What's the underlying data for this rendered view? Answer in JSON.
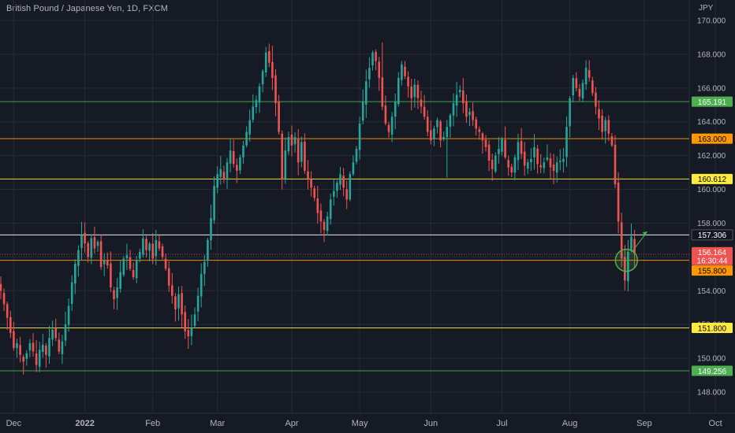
{
  "chart_title": "British Pound / Japanese Yen, 1D, FXCM",
  "price_unit": "JPY",
  "colors": {
    "background": "#161a25",
    "up": "#26a69a",
    "down": "#ef5350",
    "grid": "#252a36",
    "axis_text": "#b2b5be"
  },
  "chart_data": {
    "type": "candlestick",
    "title": "British Pound / Japanese Yen, 1D, FXCM",
    "ylabel": "JPY",
    "ylim": [
      147.0,
      171.0
    ],
    "y_ticks": [
      "148.000",
      "150.000",
      "152.000",
      "154.000",
      "156.000",
      "158.000",
      "160.000",
      "162.000",
      "164.000",
      "166.000",
      "168.000",
      "170.000"
    ],
    "x_ticks": [
      {
        "label": "Dec",
        "bar": 4
      },
      {
        "label": "2022",
        "bar": 26
      },
      {
        "label": "Feb",
        "bar": 47
      },
      {
        "label": "Mar",
        "bar": 67
      },
      {
        "label": "Apr",
        "bar": 90
      },
      {
        "label": "May",
        "bar": 111
      },
      {
        "label": "Jun",
        "bar": 133
      },
      {
        "label": "Jul",
        "bar": 155
      },
      {
        "label": "Aug",
        "bar": 176
      },
      {
        "label": "Sep",
        "bar": 199
      },
      {
        "label": "Oct",
        "bar": 221
      }
    ],
    "horizontal_levels": [
      {
        "value": 165.191,
        "label": "165.191",
        "color": "#4caf50",
        "label_bg": "#4caf50",
        "label_fg": "#ffffff"
      },
      {
        "value": 163.0,
        "label": "163.000",
        "color": "#ff9800",
        "label_bg": "#ff9800",
        "label_fg": "#000000"
      },
      {
        "value": 160.612,
        "label": "160.612",
        "color": "#ffeb3b",
        "label_bg": "#ffeb3b",
        "label_fg": "#000000"
      },
      {
        "value": 157.306,
        "label": "157.306",
        "color": "#ffffff",
        "label_bg": "#131722",
        "label_fg": "#ffffff"
      },
      {
        "value": 155.8,
        "label": "155.800",
        "color": "#ff9800",
        "label_bg": "#ff9800",
        "label_fg": "#000000"
      },
      {
        "value": 151.8,
        "label": "151.800",
        "color": "#ffeb3b",
        "label_bg": "#ffeb3b",
        "label_fg": "#000000"
      },
      {
        "value": 149.256,
        "label": "149.256",
        "color": "#4caf50",
        "label_bg": "#4caf50",
        "label_fg": "#ffffff"
      }
    ],
    "last_price": {
      "value": 156.164,
      "label": "156.164",
      "countdown": "16:30:44"
    },
    "series_close": [
      154.0,
      153.2,
      152.4,
      151.5,
      150.6,
      150.9,
      150.2,
      149.8,
      150.3,
      150.9,
      150.4,
      149.6,
      150.5,
      150.8,
      150.2,
      151.2,
      151.7,
      151.2,
      150.4,
      151.0,
      152.0,
      153.1,
      154.5,
      155.6,
      156.4,
      157.3,
      156.8,
      156.0,
      157.1,
      156.5,
      156.9,
      155.4,
      155.8,
      155.5,
      154.2,
      153.5,
      154.2,
      155.1,
      155.9,
      156.1,
      155.3,
      154.8,
      155.8,
      156.3,
      157.1,
      156.4,
      156.8,
      155.9,
      157.0,
      156.5,
      156.0,
      155.3,
      154.3,
      153.7,
      152.9,
      153.8,
      152.6,
      151.6,
      151.3,
      151.8,
      152.6,
      153.7,
      155.0,
      155.7,
      157.0,
      158.3,
      160.2,
      160.9,
      161.2,
      160.6,
      161.6,
      162.3,
      161.5,
      161.1,
      161.9,
      162.6,
      163.4,
      164.1,
      164.9,
      165.3,
      166.1,
      167.0,
      168.1,
      167.5,
      166.6,
      165.1,
      163.4,
      160.6,
      162.3,
      163.1,
      162.6,
      163.1,
      161.6,
      162.8,
      161.1,
      160.6,
      160.1,
      159.5,
      158.6,
      158.1,
      157.6,
      158.4,
      159.4,
      159.9,
      160.4,
      160.9,
      160.1,
      159.4,
      160.9,
      161.6,
      162.4,
      163.9,
      165.2,
      166.4,
      167.2,
      168.1,
      167.6,
      166.6,
      164.9,
      163.9,
      163.4,
      164.3,
      165.2,
      166.6,
      167.4,
      166.7,
      166.1,
      165.4,
      166.2,
      165.4,
      164.9,
      164.3,
      163.4,
      162.9,
      163.6,
      164.1,
      162.9,
      163.1,
      163.7,
      164.4,
      165.1,
      165.6,
      165.9,
      165.1,
      164.3,
      164.6,
      164.1,
      163.6,
      163.4,
      162.9,
      162.5,
      161.7,
      161.2,
      162.0,
      162.4,
      163.0,
      161.9,
      161.3,
      161.0,
      161.9,
      162.8,
      162.1,
      161.4,
      161.6,
      161.8,
      162.5,
      161.5,
      161.3,
      161.6,
      161.9,
      161.3,
      161.1,
      161.6,
      161.7,
      161.8,
      163.7,
      165.4,
      166.6,
      166.0,
      165.5,
      166.3,
      167.2,
      166.6,
      165.7,
      164.9,
      164.2,
      163.4,
      164.1,
      163.3,
      162.6,
      160.3,
      158.1,
      155.9,
      154.6,
      156.3,
      157.2,
      156.164
    ]
  }
}
